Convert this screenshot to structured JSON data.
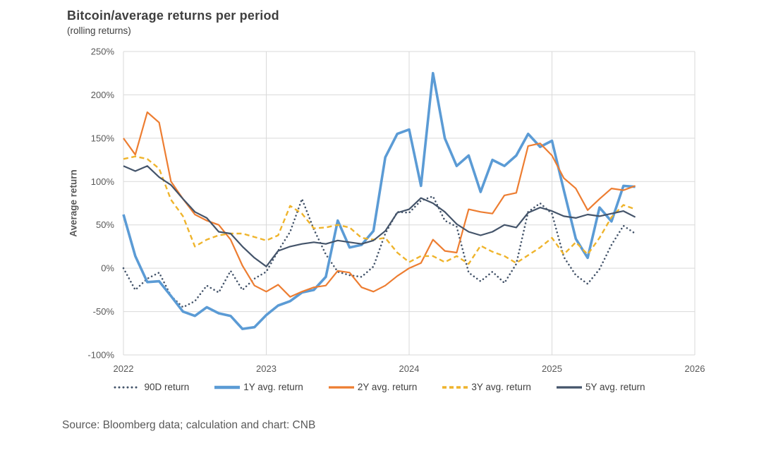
{
  "source_note": "Source: Bloomberg data; calculation and chart: CNB",
  "colors": {
    "background": "#FFFFFF",
    "gridline": "#D9D9D9",
    "axis_text": "#595959",
    "title_text": "#3F3F3F",
    "legend_text": "#404040",
    "source_text": "#595959"
  },
  "chart_data": {
    "type": "line",
    "title": "Bitcoin/average returns per period",
    "subtitle": "(rolling returns)",
    "xlabel": "",
    "ylabel": "Average return",
    "grid": true,
    "legend_position": "bottom",
    "xlim": [
      2022,
      2026
    ],
    "ylim": [
      -100,
      250
    ],
    "x_ticks": [
      2022,
      2023,
      2024,
      2025,
      2026
    ],
    "y_ticks": [
      250,
      200,
      150,
      100,
      50,
      0,
      -50,
      -100
    ],
    "y_tick_suffix": "%",
    "x_unit": "decimal_year",
    "x": [
      2022.0,
      2022.083,
      2022.167,
      2022.25,
      2022.333,
      2022.417,
      2022.5,
      2022.583,
      2022.667,
      2022.75,
      2022.833,
      2022.917,
      2023.0,
      2023.083,
      2023.167,
      2023.25,
      2023.333,
      2023.417,
      2023.5,
      2023.583,
      2023.667,
      2023.75,
      2023.833,
      2023.917,
      2024.0,
      2024.083,
      2024.167,
      2024.25,
      2024.333,
      2024.417,
      2024.5,
      2024.583,
      2024.667,
      2024.75,
      2024.833,
      2024.917,
      2025.0,
      2025.083,
      2025.167,
      2025.25,
      2025.333,
      2025.417,
      2025.5,
      2025.583
    ],
    "series": [
      {
        "name": "90D return",
        "color": "#44546A",
        "style": "dotted",
        "width": 2.6,
        "values": [
          0,
          -25,
          -12,
          -5,
          -32,
          -45,
          -38,
          -20,
          -28,
          -3,
          -25,
          -12,
          -4,
          20,
          42,
          80,
          45,
          16,
          -4,
          -8,
          -10,
          2,
          40,
          65,
          64,
          78,
          83,
          55,
          48,
          -5,
          -15,
          -4,
          -17,
          5,
          65,
          75,
          63,
          13,
          -8,
          -18,
          -1,
          27,
          49,
          40
        ]
      },
      {
        "name": "1Y avg. return",
        "color": "#5B9BD5",
        "style": "solid",
        "width": 3.6,
        "values": [
          62,
          14,
          -16,
          -15,
          -32,
          -50,
          -55,
          -45,
          -52,
          -55,
          -70,
          -68,
          -54,
          -43,
          -38,
          -28,
          -25,
          -10,
          55,
          24,
          27,
          43,
          128,
          155,
          160,
          95,
          225,
          150,
          118,
          130,
          88,
          125,
          118,
          130,
          155,
          140,
          147,
          90,
          34,
          12,
          70,
          54,
          95,
          94
        ]
      },
      {
        "name": "2Y avg. return",
        "color": "#ED7D31",
        "style": "solid",
        "width": 2.2,
        "values": [
          150,
          131,
          180,
          168,
          100,
          80,
          62,
          55,
          50,
          33,
          3,
          -20,
          -27,
          -19,
          -33,
          -27,
          -22,
          -20,
          -3,
          -5,
          -22,
          -27,
          -20,
          -9,
          0,
          6,
          33,
          20,
          18,
          68,
          65,
          63,
          84,
          87,
          141,
          144,
          130,
          104,
          92,
          67,
          80,
          92,
          90,
          95
        ]
      },
      {
        "name": "3Y avg. return",
        "color": "#EFB42C",
        "style": "dashed",
        "width": 2.4,
        "values": [
          126,
          129,
          126,
          115,
          79,
          60,
          25,
          33,
          38,
          40,
          40,
          36,
          32,
          38,
          72,
          63,
          46,
          47,
          50,
          47,
          35,
          33,
          35,
          18,
          7,
          14,
          14,
          7,
          14,
          5,
          26,
          19,
          14,
          6,
          15,
          24,
          35,
          16,
          30,
          16,
          35,
          59,
          73,
          68
        ]
      },
      {
        "name": "5Y avg. return",
        "color": "#44546A",
        "style": "solid",
        "width": 2.2,
        "values": [
          118,
          112,
          118,
          105,
          96,
          80,
          65,
          58,
          42,
          40,
          25,
          12,
          2,
          20,
          25,
          28,
          30,
          28,
          32,
          30,
          28,
          32,
          43,
          64,
          68,
          81,
          75,
          65,
          51,
          42,
          38,
          42,
          50,
          47,
          64,
          70,
          66,
          60,
          58,
          62,
          60,
          63,
          66,
          59
        ]
      }
    ]
  }
}
